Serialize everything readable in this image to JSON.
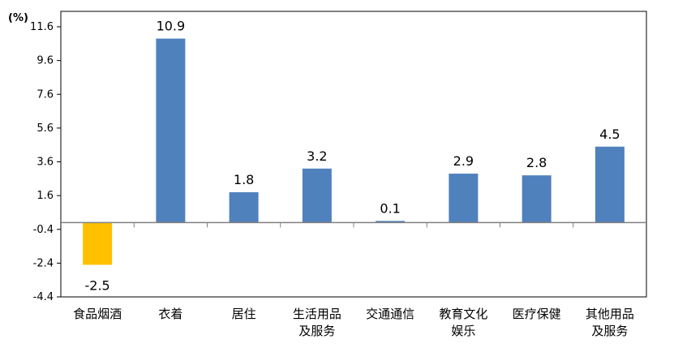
{
  "chart_data": {
    "type": "bar",
    "unit_label": "(%)",
    "categories": [
      [
        "食品烟酒"
      ],
      [
        "衣着"
      ],
      [
        "居住"
      ],
      [
        "生活用品",
        "及服务"
      ],
      [
        "交通通信"
      ],
      [
        "教育文化",
        "娱乐"
      ],
      [
        "医疗保健"
      ],
      [
        "其他用品",
        "及服务"
      ]
    ],
    "values": [
      -2.5,
      10.9,
      1.8,
      3.2,
      0.1,
      2.9,
      2.8,
      4.5
    ],
    "value_labels": [
      "-2.5",
      "10.9",
      "1.8",
      "3.2",
      "0.1",
      "2.9",
      "2.8",
      "4.5"
    ],
    "ylim": [
      -4.4,
      11.6
    ],
    "yticks": [
      11.6,
      9.6,
      7.6,
      5.6,
      3.6,
      1.6,
      -0.4,
      -2.4,
      -4.4
    ],
    "ytick_labels": [
      "11.6",
      "9.6",
      "7.6",
      "5.6",
      "3.6",
      "1.6",
      "-0.4",
      "-2.4",
      "-4.4"
    ],
    "grid": false,
    "colors": {
      "positive": "#4F81BD",
      "negative": "#FFC000",
      "axis": "#808080",
      "frame": "#000000"
    }
  }
}
